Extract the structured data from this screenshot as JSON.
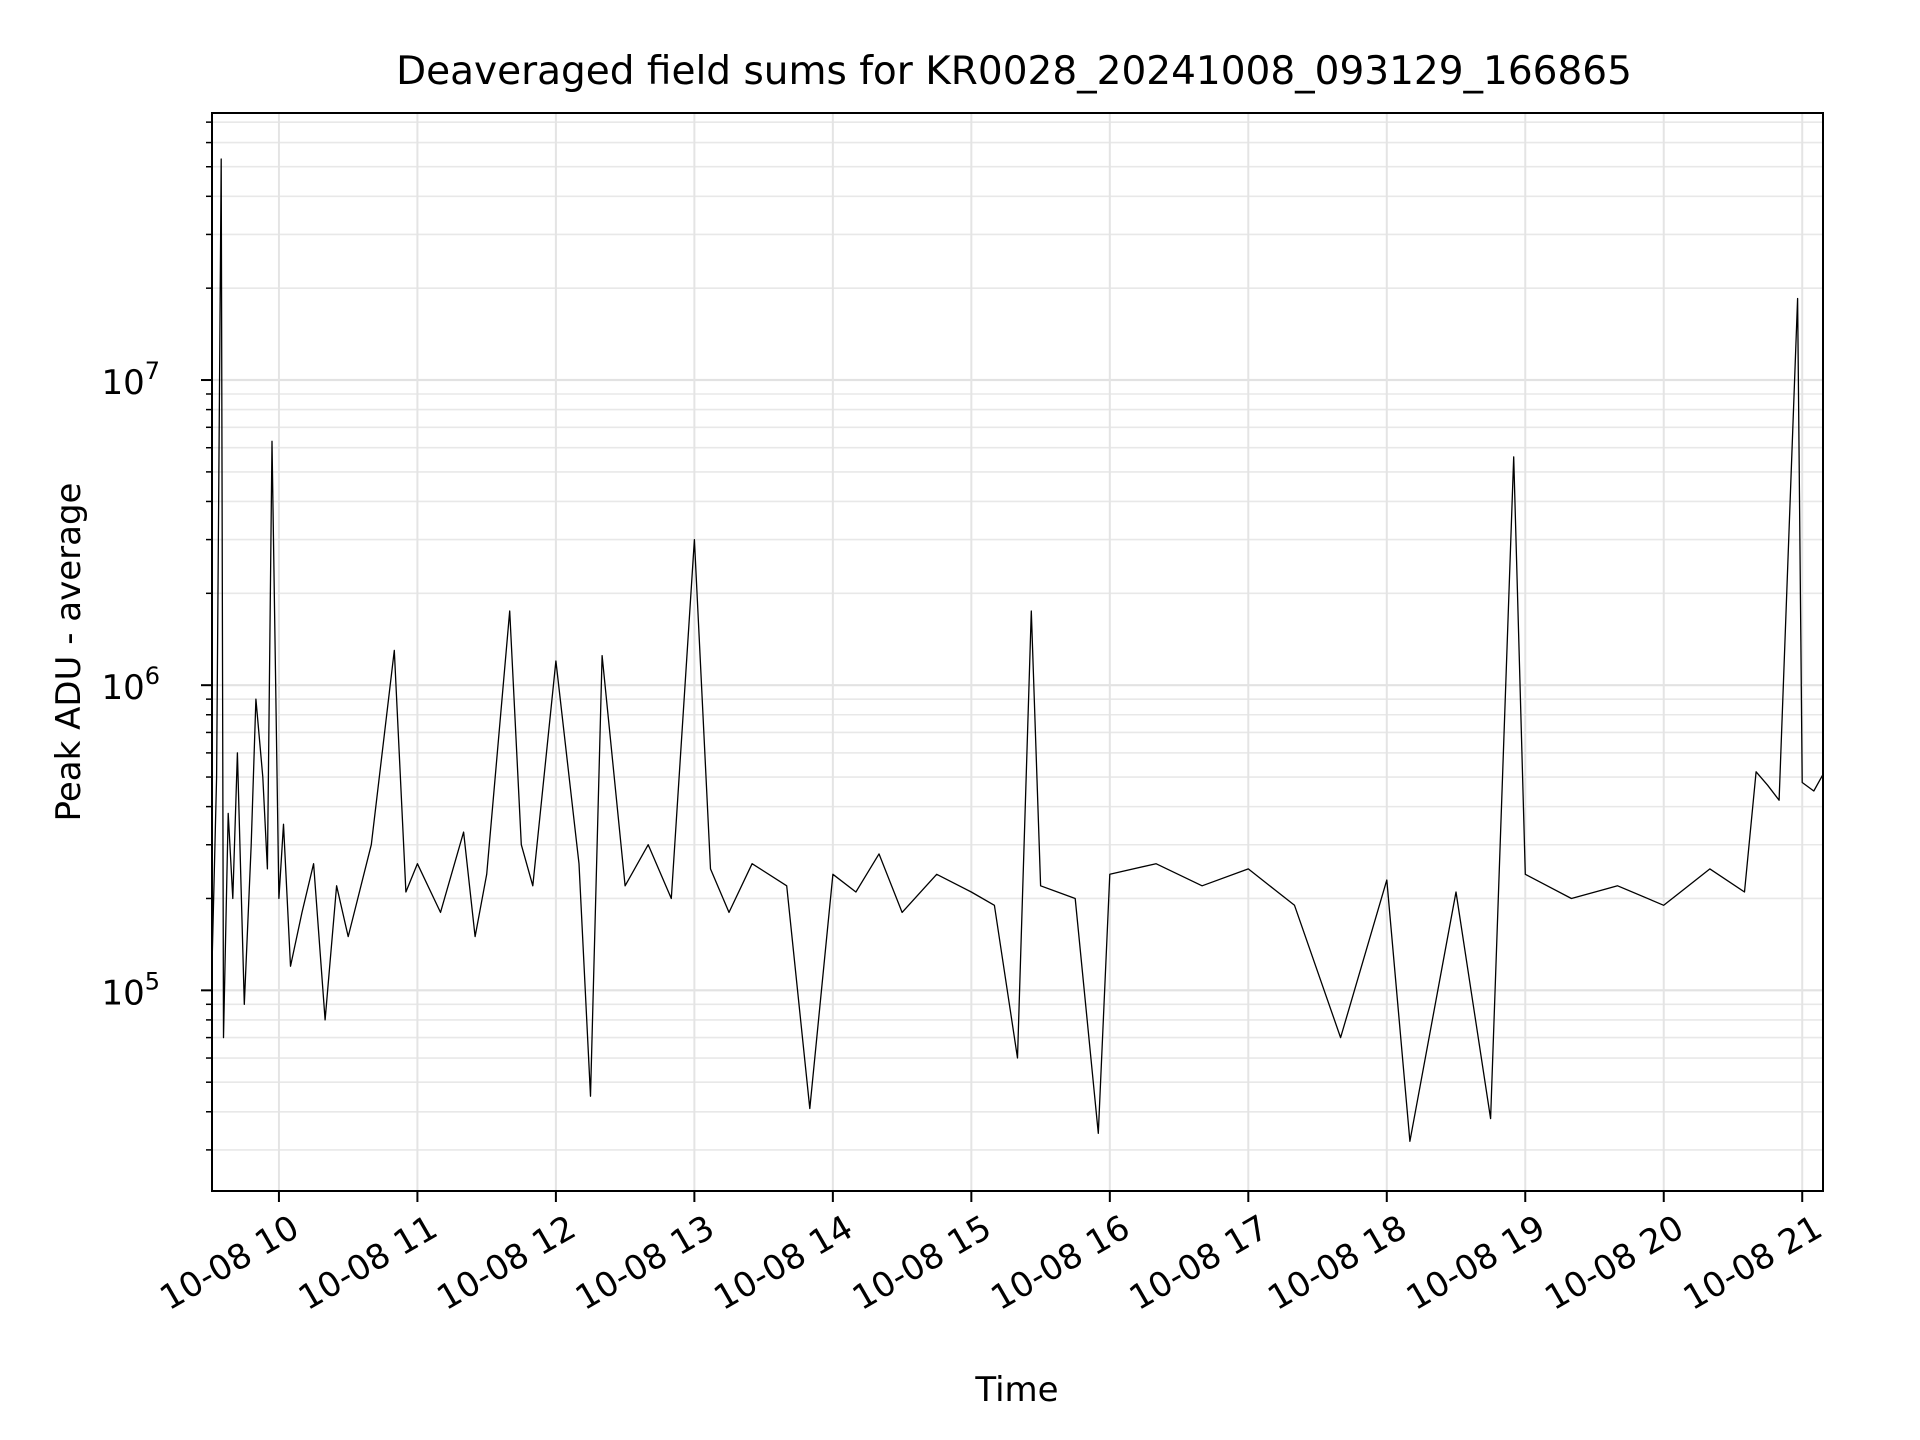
{
  "chart_data": {
    "type": "line",
    "title": "Deaveraged field sums for KR0028_20241008_093129_166865",
    "xlabel": "Time",
    "ylabel": "Peak ADU - average",
    "y_scale": "log",
    "grid": true,
    "legend": "none",
    "line_color": "#000000",
    "xlim": [
      "2024-10-08T09:31",
      "2024-10-08T21:09"
    ],
    "ylim": [
      22000,
      75000000
    ],
    "x_ticks": [
      {
        "time": "2024-10-08T10:00",
        "label": "10-08 10"
      },
      {
        "time": "2024-10-08T11:00",
        "label": "10-08 11"
      },
      {
        "time": "2024-10-08T12:00",
        "label": "10-08 12"
      },
      {
        "time": "2024-10-08T13:00",
        "label": "10-08 13"
      },
      {
        "time": "2024-10-08T14:00",
        "label": "10-08 14"
      },
      {
        "time": "2024-10-08T15:00",
        "label": "10-08 15"
      },
      {
        "time": "2024-10-08T16:00",
        "label": "10-08 16"
      },
      {
        "time": "2024-10-08T17:00",
        "label": "10-08 17"
      },
      {
        "time": "2024-10-08T18:00",
        "label": "10-08 18"
      },
      {
        "time": "2024-10-08T19:00",
        "label": "10-08 19"
      },
      {
        "time": "2024-10-08T20:00",
        "label": "10-08 20"
      },
      {
        "time": "2024-10-08T21:00",
        "label": "10-08 21"
      }
    ],
    "y_ticks": [
      {
        "value": 100000,
        "base": "10",
        "exp": "5"
      },
      {
        "value": 1000000,
        "base": "10",
        "exp": "6"
      },
      {
        "value": 10000000,
        "base": "10",
        "exp": "7"
      }
    ],
    "series": [
      {
        "x": [
          "2024-10-08T09:31",
          "2024-10-08T09:33",
          "2024-10-08T09:35",
          "2024-10-08T09:36",
          "2024-10-08T09:38",
          "2024-10-08T09:40",
          "2024-10-08T09:42",
          "2024-10-08T09:45",
          "2024-10-08T09:48",
          "2024-10-08T09:50",
          "2024-10-08T09:53",
          "2024-10-08T09:55",
          "2024-10-08T09:57",
          "2024-10-08T10:00",
          "2024-10-08T10:02",
          "2024-10-08T10:05",
          "2024-10-08T10:10",
          "2024-10-08T10:15",
          "2024-10-08T10:20",
          "2024-10-08T10:25",
          "2024-10-08T10:30",
          "2024-10-08T10:40",
          "2024-10-08T10:50",
          "2024-10-08T10:55",
          "2024-10-08T11:00",
          "2024-10-08T11:10",
          "2024-10-08T11:20",
          "2024-10-08T11:25",
          "2024-10-08T11:30",
          "2024-10-08T11:40",
          "2024-10-08T11:45",
          "2024-10-08T11:50",
          "2024-10-08T12:00",
          "2024-10-08T12:10",
          "2024-10-08T12:15",
          "2024-10-08T12:20",
          "2024-10-08T12:30",
          "2024-10-08T12:40",
          "2024-10-08T12:50",
          "2024-10-08T13:00",
          "2024-10-08T13:07",
          "2024-10-08T13:15",
          "2024-10-08T13:25",
          "2024-10-08T13:40",
          "2024-10-08T13:50",
          "2024-10-08T14:00",
          "2024-10-08T14:10",
          "2024-10-08T14:20",
          "2024-10-08T14:30",
          "2024-10-08T14:45",
          "2024-10-08T15:00",
          "2024-10-08T15:10",
          "2024-10-08T15:20",
          "2024-10-08T15:26",
          "2024-10-08T15:30",
          "2024-10-08T15:45",
          "2024-10-08T15:55",
          "2024-10-08T16:00",
          "2024-10-08T16:20",
          "2024-10-08T16:40",
          "2024-10-08T17:00",
          "2024-10-08T17:20",
          "2024-10-08T17:40",
          "2024-10-08T18:00",
          "2024-10-08T18:10",
          "2024-10-08T18:30",
          "2024-10-08T18:45",
          "2024-10-08T18:55",
          "2024-10-08T19:00",
          "2024-10-08T19:20",
          "2024-10-08T19:40",
          "2024-10-08T20:00",
          "2024-10-08T20:20",
          "2024-10-08T20:35",
          "2024-10-08T20:40",
          "2024-10-08T20:45",
          "2024-10-08T20:50",
          "2024-10-08T20:58",
          "2024-10-08T21:00",
          "2024-10-08T21:05",
          "2024-10-08T21:09"
        ],
        "y": [
          120000,
          500000,
          53000000,
          70000,
          380000,
          200000,
          600000,
          90000,
          300000,
          900000,
          500000,
          250000,
          6300000,
          200000,
          350000,
          120000,
          180000,
          260000,
          80000,
          220000,
          150000,
          300000,
          1300000,
          210000,
          260000,
          180000,
          330000,
          150000,
          240000,
          1750000,
          300000,
          220000,
          1200000,
          260000,
          45000,
          1250000,
          220000,
          300000,
          200000,
          3000000,
          250000,
          180000,
          260000,
          220000,
          41000,
          240000,
          210000,
          280000,
          180000,
          240000,
          210000,
          190000,
          60000,
          1750000,
          220000,
          200000,
          34000,
          240000,
          260000,
          220000,
          250000,
          190000,
          70000,
          230000,
          32000,
          210000,
          38000,
          5600000,
          240000,
          200000,
          220000,
          190000,
          250000,
          210000,
          520000,
          470000,
          420000,
          18500000,
          480000,
          450000,
          510000
        ]
      }
    ]
  }
}
